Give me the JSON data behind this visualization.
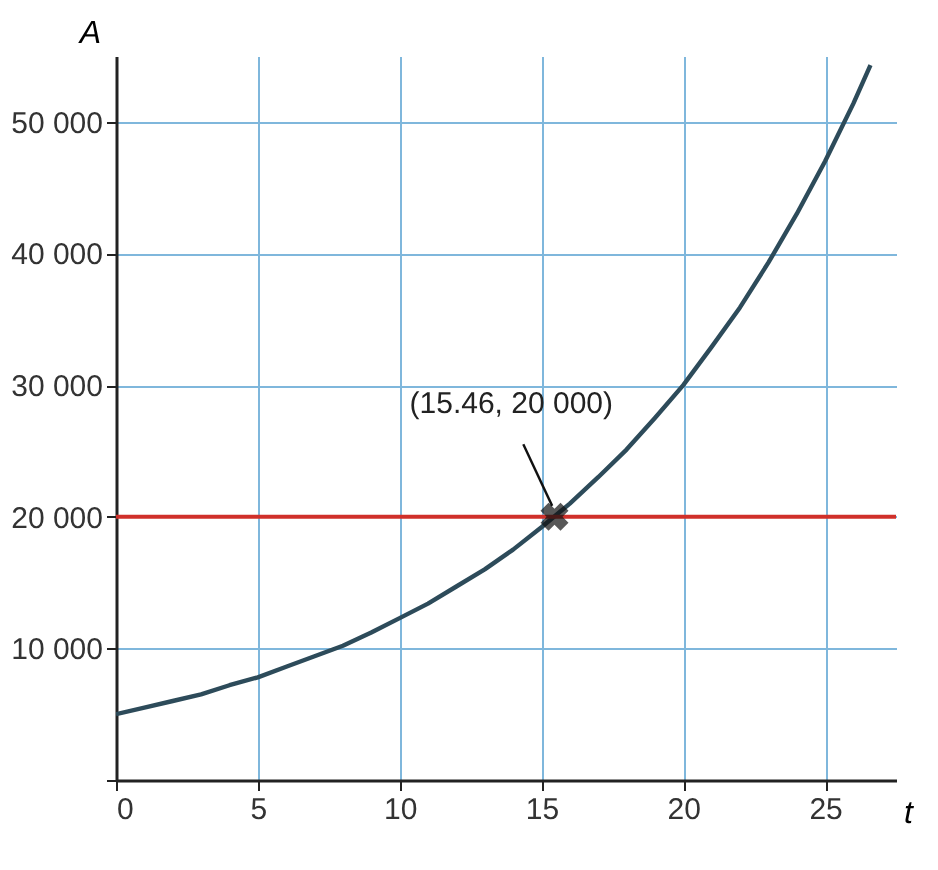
{
  "chart_data": {
    "type": "line",
    "xlabel": "t",
    "ylabel": "A",
    "x": [
      0,
      1,
      2,
      3,
      4,
      5,
      6,
      7,
      8,
      9,
      10,
      11,
      12,
      13,
      14,
      15,
      16,
      17,
      18,
      19,
      20,
      21,
      22,
      23,
      24,
      25,
      26,
      26.6
    ],
    "series": [
      {
        "color": "#2d4b5a",
        "values": [
          5000,
          5500,
          6000,
          6500,
          7200,
          7800,
          8600,
          9400,
          10200,
          11200,
          12300,
          13400,
          14700,
          16000,
          17500,
          19200,
          21000,
          23000,
          25100,
          27500,
          30000,
          32900,
          35900,
          39300,
          43000,
          47000,
          51400,
          54300
        ]
      }
    ],
    "xlim": [
      0,
      27.5
    ],
    "ylim": [
      0,
      55000
    ],
    "xticks": [
      0,
      5,
      10,
      15,
      20,
      25
    ],
    "yticks": [
      {
        "value": 0,
        "label": null
      },
      {
        "value": 10000,
        "label": "10 000"
      },
      {
        "value": 20000,
        "label": "20 000"
      },
      {
        "value": 30000,
        "label": "30 000"
      },
      {
        "value": 40000,
        "label": "40 000"
      },
      {
        "value": 50000,
        "label": "50 000"
      }
    ],
    "ref_lines": [
      {
        "axis": "y",
        "value": 20000,
        "label": null,
        "color": "#d0302a"
      }
    ],
    "annotations": [
      {
        "text": "(15.46, 20 000)",
        "x": 15.46,
        "y": 20000
      }
    ],
    "grid": true,
    "marker": "none",
    "line_style": "solid"
  }
}
